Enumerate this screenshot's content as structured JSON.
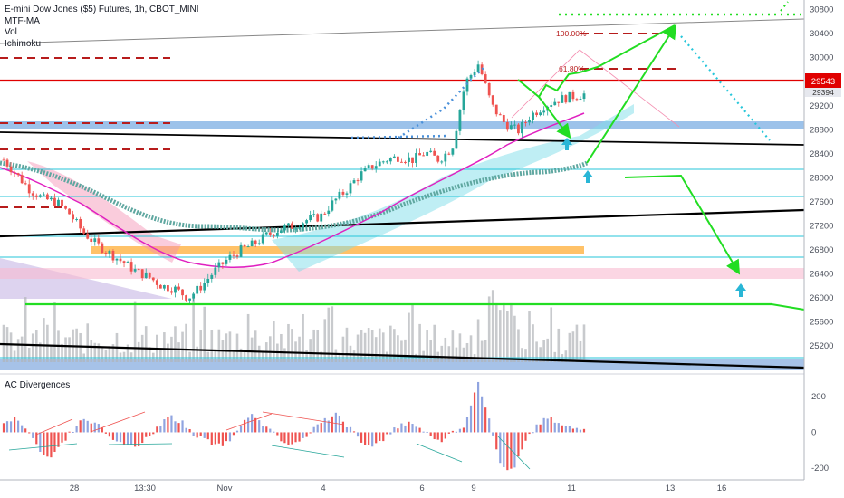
{
  "header": {
    "title": "E-mini Dow Jones ($5) Futures, 1h, CBOT_MINI",
    "indicators": [
      "MTF-MA",
      "Vol",
      "Ichimoku"
    ],
    "subpane_title": "AC Divergences"
  },
  "colors": {
    "up_candle": "#26a69a",
    "down_candle": "#ef5350",
    "resistance": "#e00000",
    "support_zone": "#4a90d9",
    "projection": "#22dd22",
    "arrow_up": "#29b6d6",
    "magenta_ma": "#e020c0",
    "teal_ma": "#5fa7a0",
    "fib": "#b71c1c",
    "trend": "#000000"
  },
  "chart_data": [
    {
      "type": "line",
      "title": "E-mini Dow Jones ($5) Futures, 1h, CBOT_MINI",
      "ylim": [
        24900,
        30900
      ],
      "y_ticks": [
        30800,
        30400,
        30000,
        29600,
        29200,
        28800,
        28400,
        28000,
        27600,
        27200,
        26800,
        26400,
        26000,
        25600,
        25200
      ],
      "x_ticks": [
        "28",
        "13:30",
        "Nov",
        "4",
        "6",
        "9",
        "11",
        "13",
        "16"
      ],
      "price_label": "29543",
      "price_label_secondary": "29394",
      "fib_levels": [
        {
          "label": "100.00%",
          "value": 30350
        },
        {
          "label": "61.80%",
          "value": 29720
        }
      ],
      "horizontal_levels": [
        29543,
        28800,
        28100,
        27650,
        27020,
        26700,
        26420,
        25940
      ],
      "series": [
        {
          "values": [
            28300,
            28050,
            27800,
            27650,
            27600,
            27400,
            27100,
            26900,
            26750,
            26600,
            26450,
            26350,
            26200,
            26150,
            26000,
            26200,
            26450,
            26650,
            26800,
            26900,
            27050,
            27150,
            27200,
            27300,
            27350,
            27600,
            27800,
            28050,
            28200,
            28300,
            28350,
            28300,
            28420,
            28300,
            28500,
            29580,
            29900,
            29200,
            28900,
            28780,
            29050,
            29200,
            29300,
            29350,
            29394
          ]
        }
      ]
    },
    {
      "type": "bar",
      "title": "AC Divergences",
      "ylim": [
        -250,
        300
      ],
      "y_ticks": [
        200,
        0,
        -200
      ],
      "values": [
        40,
        80,
        20,
        -100,
        -150,
        -60,
        30,
        80,
        40,
        -20,
        -60,
        -90,
        -40,
        20,
        90,
        60,
        -10,
        -40,
        -80,
        -50,
        30,
        110,
        40,
        -20,
        -60,
        -40,
        10,
        60,
        100,
        40,
        -40,
        -90,
        -40,
        20,
        50,
        30,
        -20,
        -40,
        10,
        40,
        300,
        60,
        -180,
        -220,
        -60,
        40,
        80,
        40,
        20,
        30
      ]
    }
  ]
}
